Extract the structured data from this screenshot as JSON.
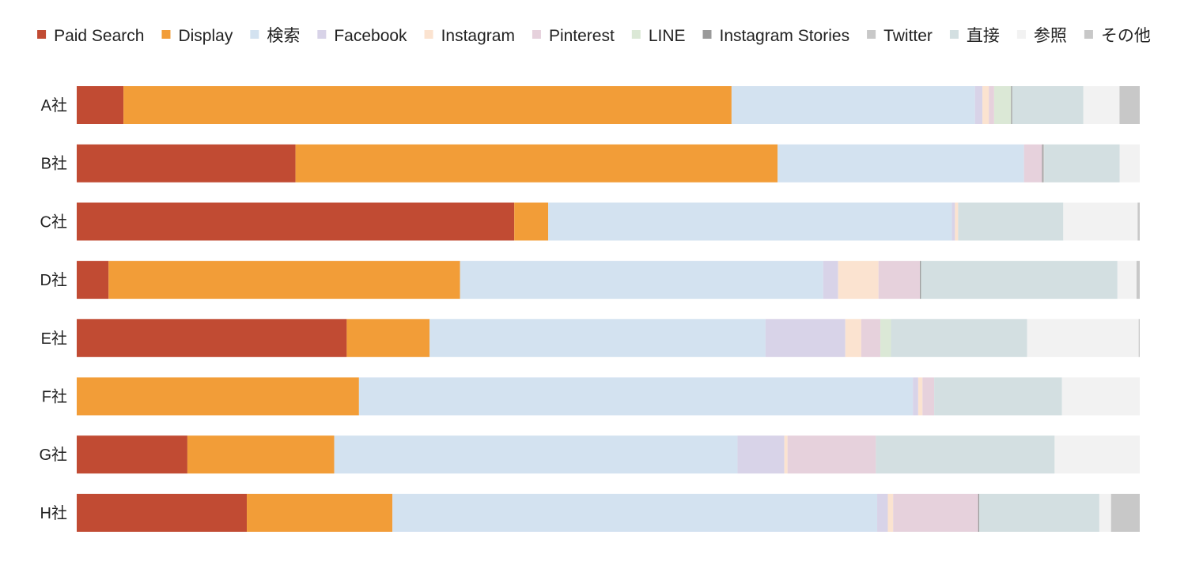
{
  "chart_data": {
    "type": "bar",
    "orientation": "horizontal",
    "stacked": "percent",
    "title": "",
    "xlabel": "",
    "ylabel": "",
    "grid": false,
    "legend_position": "top",
    "xlim": [
      0,
      100
    ],
    "categories": [
      "A社",
      "B社",
      "C社",
      "D社",
      "E社",
      "F社",
      "G社",
      "H社"
    ],
    "series": [
      {
        "name": "Paid Search",
        "color": "#c14b33",
        "values": [
          4.4,
          20.6,
          41.2,
          3.0,
          25.4,
          0.0,
          10.4,
          16.0
        ]
      },
      {
        "name": "Display",
        "color": "#f29d38",
        "values": [
          57.2,
          45.4,
          3.2,
          33.1,
          7.8,
          26.5,
          13.8,
          13.7
        ]
      },
      {
        "name": "検索",
        "color": "#d3e2f0",
        "values": [
          22.9,
          23.2,
          38.0,
          34.2,
          31.6,
          52.0,
          37.9,
          45.6
        ]
      },
      {
        "name": "Facebook",
        "color": "#d8d3e8",
        "values": [
          0.7,
          0.0,
          0.3,
          1.4,
          7.5,
          0.5,
          4.4,
          1.0
        ]
      },
      {
        "name": "Instagram",
        "color": "#fbe3d0",
        "values": [
          0.6,
          0.0,
          0.3,
          3.8,
          1.5,
          0.4,
          0.3,
          0.5
        ]
      },
      {
        "name": "Pinterest",
        "color": "#e6d1dc",
        "values": [
          0.5,
          1.7,
          0.0,
          3.9,
          1.8,
          1.1,
          8.3,
          8.0
        ]
      },
      {
        "name": "LINE",
        "color": "#dbe8d6",
        "values": [
          1.6,
          0.0,
          0.0,
          0.0,
          1.0,
          0.0,
          0.0,
          0.0
        ]
      },
      {
        "name": "Instagram Stories",
        "color": "#9a9a9a",
        "values": [
          0.1,
          0.1,
          0.0,
          0.1,
          0.0,
          0.0,
          0.0,
          0.1
        ]
      },
      {
        "name": "Twitter",
        "color": "#c8c8c8",
        "values": [
          0.0,
          0.1,
          0.0,
          0.0,
          0.0,
          0.0,
          0.0,
          0.0
        ]
      },
      {
        "name": "直接",
        "color": "#d3dfe1",
        "values": [
          6.7,
          7.1,
          9.9,
          18.5,
          12.8,
          12.0,
          16.8,
          11.3
        ]
      },
      {
        "name": "参照",
        "color": "#f2f2f2",
        "values": [
          3.4,
          1.9,
          7.0,
          1.8,
          10.5,
          7.3,
          8.0,
          1.1
        ]
      },
      {
        "name": "その他",
        "color": "#c8c8c8",
        "values": [
          1.9,
          0.0,
          0.2,
          0.3,
          0.1,
          0.0,
          0.0,
          2.7
        ]
      }
    ]
  }
}
